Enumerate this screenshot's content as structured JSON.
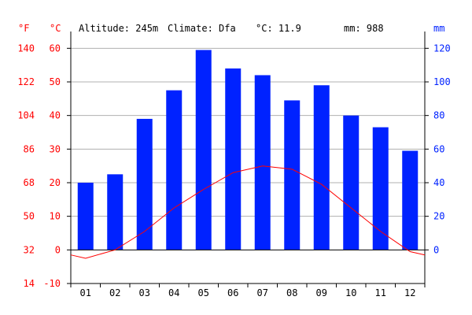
{
  "header": {
    "altitude": "Altitude: 245m",
    "climate": "Climate: Dfa",
    "temp": "°C: 11.9",
    "precip": "mm: 988"
  },
  "axes": {
    "left_outer_unit": "°F",
    "left_inner_unit": "°C",
    "right_unit": "mm"
  },
  "colors": {
    "temperature": "#ff0000",
    "precipitation": "#0022ff",
    "fahrenheit_labels": "#ff0000",
    "celsius_labels": "#ff0000",
    "mm_labels": "#0022ff",
    "grid": "#b0b0b0",
    "axis": "#000000"
  },
  "chart_data": {
    "type": "bar+line",
    "categories": [
      "01",
      "02",
      "03",
      "04",
      "05",
      "06",
      "07",
      "08",
      "09",
      "10",
      "11",
      "12"
    ],
    "series": [
      {
        "kind": "bar",
        "axis": "right",
        "values": [
          40,
          45,
          78,
          95,
          119,
          108,
          104,
          89,
          98,
          80,
          73,
          59
        ]
      },
      {
        "kind": "line",
        "axis": "left",
        "x": [
          0.5,
          1,
          2,
          3,
          4,
          5,
          6,
          7,
          8,
          9,
          10,
          11,
          12,
          12.5
        ],
        "values": [
          -1.5,
          -2.5,
          0.0,
          5.5,
          12.5,
          18.0,
          23.0,
          25.0,
          24.0,
          19.5,
          12.5,
          5.5,
          -0.5,
          -1.5
        ]
      }
    ],
    "celsius_ticks": [
      "-10",
      "0",
      "10",
      "20",
      "30",
      "40",
      "50",
      "60"
    ],
    "fahrenheit_ticks": [
      "14",
      "32",
      "50",
      "68",
      "86",
      "104",
      "122",
      "140"
    ],
    "mm_ticks": [
      "0",
      "20",
      "40",
      "60",
      "80",
      "100",
      "120"
    ],
    "celsius_range": [
      -10,
      65
    ],
    "mm_range": [
      -20,
      130
    ],
    "grid": true
  }
}
